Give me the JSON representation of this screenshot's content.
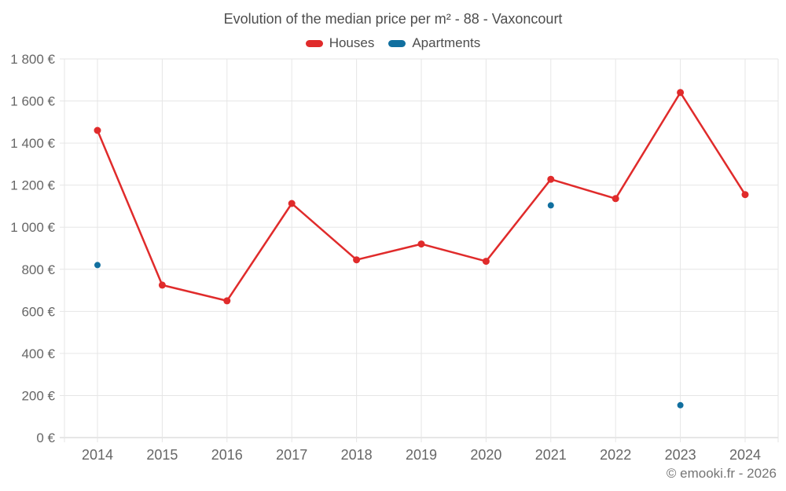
{
  "chart": {
    "title": "Evolution of the median price per m² - 88 - Vaxoncourt",
    "copyright": "© emooki.fr - 2026"
  },
  "chart_data": {
    "type": "line",
    "title": "Evolution of the median price per m² - 88 - Vaxoncourt",
    "x": [
      2014,
      2015,
      2016,
      2017,
      2018,
      2019,
      2020,
      2021,
      2022,
      2023,
      2024
    ],
    "series": [
      {
        "name": "Houses",
        "color": "#e02b2b",
        "show_line": true,
        "marker_radius": 4.5,
        "values": [
          1460,
          725,
          650,
          1113,
          845,
          920,
          838,
          1228,
          1136,
          1640,
          1155
        ]
      },
      {
        "name": "Apartments",
        "color": "#116f9f",
        "show_line": false,
        "marker_radius": 4,
        "values": [
          820,
          null,
          null,
          null,
          null,
          null,
          null,
          1104,
          null,
          154,
          null
        ]
      }
    ],
    "ylim": [
      0,
      1800
    ],
    "y_tick_step": 200,
    "y_tick_labels": [
      "0 €",
      "200 €",
      "400 €",
      "600 €",
      "800 €",
      "1 000 €",
      "1 200 €",
      "1 400 €",
      "1 600 €",
      "1 800 €"
    ],
    "xlabel": "",
    "ylabel": "",
    "grid": true,
    "legend_position": "top",
    "grid_color": "#e6e6e6",
    "axis_line_color": "#cccccc"
  }
}
